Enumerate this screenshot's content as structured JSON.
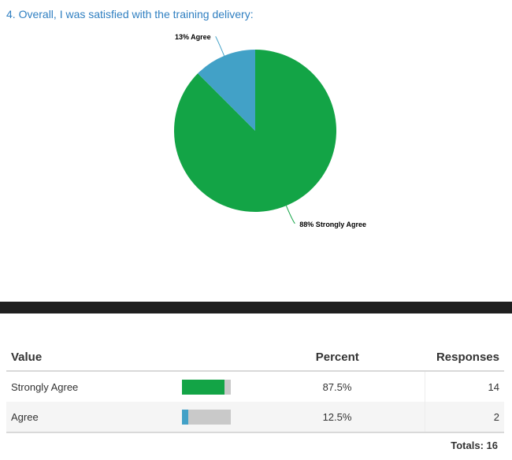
{
  "question": {
    "title": "4. Overall, I was satisfied with the training delivery:"
  },
  "chart_data": {
    "type": "pie",
    "title": "4. Overall, I was satisfied with the training delivery:",
    "slices": [
      {
        "label": "Strongly Agree",
        "percent": 87.5,
        "display_label": "88% Strongly Agree",
        "color": "#13a446"
      },
      {
        "label": "Agree",
        "percent": 12.5,
        "display_label": "13% Agree",
        "color": "#42a1c7"
      }
    ],
    "start_angle_deg": 0,
    "direction": "clockwise"
  },
  "table": {
    "headers": {
      "value": "Value",
      "percent": "Percent",
      "responses": "Responses"
    },
    "rows": [
      {
        "value": "Strongly Agree",
        "percent": "87.5%",
        "percent_value": 87.5,
        "responses": "14",
        "color": "#13a446"
      },
      {
        "value": "Agree",
        "percent": "12.5%",
        "percent_value": 12.5,
        "responses": "2",
        "color": "#42a1c7"
      }
    ],
    "totals_label": "Totals:",
    "totals_value": "16"
  }
}
